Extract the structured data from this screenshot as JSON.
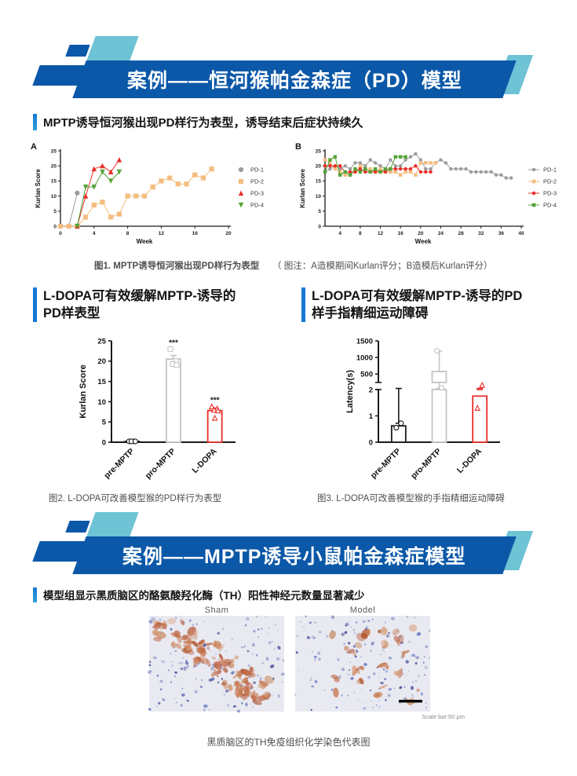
{
  "colors": {
    "banner_blue": "#0b58a8",
    "teal": "#6ec3d5",
    "accent_bar_blue": "#1778d4",
    "accent_bar_blue2": "#2da0d8",
    "caption_gray": "#4f4f4f",
    "series_gray": "#9b9b9b",
    "series_orange": "#f5bd7f",
    "series_red": "#e8302a",
    "series_green": "#55a338",
    "bar_gray": "#c4c4c4",
    "bar_black": "#1a1a1a",
    "histology_bg": "#e9eaf1"
  },
  "banner1": {
    "title": "案例——恒河猴帕金森症（PD）模型"
  },
  "section1": {
    "heading": "MPTP诱导恒河猴出现PD样行为表型，诱导结束后症状持续久"
  },
  "figure1": {
    "caption": "图1. MPTP诱导恒河猴出现PD样行为表型",
    "note": "（ 图注：A造模期间Kurlan评分；B造模后Kurlan评分）"
  },
  "section2": {
    "left_heading": "L-DOPA可有效缓解MPTP-诱导的PD样表型",
    "right_heading": "L-DOPA可有效缓解MPTP-诱导的PD样手指精细运动障碍"
  },
  "figure2": {
    "caption": "图2. L-DOPA可改善模型猴的PD样行为表型"
  },
  "figure3": {
    "caption": "图3. L-DOPA可改善模型猴的手指精细运动障碍"
  },
  "banner2": {
    "title": "案例——MPTP诱导小鼠帕金森症模型"
  },
  "section3": {
    "heading": "模型组显示黑质脑区的酪氨酸羟化酶（TH）阳性神经元数量显著减少"
  },
  "histology": {
    "panels": [
      {
        "label": "Sham",
        "seed": 7,
        "blue_dots": 150,
        "red_blobs": 62,
        "cluster": "diagonal",
        "scale_bar": false
      },
      {
        "label": "Model",
        "seed": 13,
        "blue_dots": 150,
        "red_blobs": 24,
        "cluster": "scattered",
        "scale_bar": true
      }
    ],
    "scale_bar_text": "Scale bar:50 μm",
    "caption": "黑质脑区的TH免疫组织化学染色代表图"
  },
  "chart_data": [
    {
      "id": "panelA",
      "type": "line",
      "panel_label": "A",
      "xlabel": "Week",
      "ylabel": "Kurlan Score",
      "xlim": [
        0,
        20
      ],
      "xticks": [
        0,
        4,
        8,
        12,
        16,
        20
      ],
      "ylim": [
        0,
        25
      ],
      "yticks": [
        0,
        5,
        10,
        15,
        20,
        25
      ],
      "legend": {
        "position": "right",
        "style": "marker"
      },
      "series": [
        {
          "name": "PD-1",
          "color": "#9b9b9b",
          "marker": "circle",
          "x": [
            0,
            1,
            2
          ],
          "y": [
            0,
            0,
            11
          ]
        },
        {
          "name": "PD-2",
          "color": "#f5bd7f",
          "marker": "square",
          "x": [
            0,
            1,
            2,
            3,
            4,
            5,
            6,
            7,
            8,
            9,
            10,
            11,
            12,
            13,
            14,
            15,
            16,
            17,
            18
          ],
          "y": [
            0,
            0,
            0,
            3,
            7,
            8,
            3,
            4,
            10,
            10,
            10,
            13,
            15,
            16,
            14,
            14,
            17,
            16,
            19
          ]
        },
        {
          "name": "PD-3",
          "color": "#e8302a",
          "marker": "triangle-up",
          "x": [
            2,
            3,
            4,
            5,
            6,
            7
          ],
          "y": [
            0,
            10,
            19,
            20,
            18,
            22
          ]
        },
        {
          "name": "PD-4",
          "color": "#55a338",
          "marker": "triangle-down",
          "x": [
            2,
            3,
            4,
            5,
            6,
            7
          ],
          "y": [
            0,
            13,
            13,
            18,
            15,
            18
          ]
        }
      ]
    },
    {
      "id": "panelB",
      "type": "line",
      "panel_label": "B",
      "xlabel": "Week",
      "ylabel": "Kurlan Score",
      "xlim": [
        1,
        40
      ],
      "xticks": [
        4,
        8,
        12,
        16,
        20,
        24,
        28,
        32,
        36,
        40
      ],
      "ylim": [
        0,
        25
      ],
      "yticks": [
        0,
        5,
        10,
        15,
        20,
        25
      ],
      "legend": {
        "position": "right",
        "style": "line-marker"
      },
      "series": [
        {
          "name": "PD-1",
          "color": "#9b9b9b",
          "marker": "circle",
          "x": [
            1,
            2,
            3,
            4,
            5,
            6,
            7,
            8,
            9,
            10,
            11,
            12,
            13,
            14,
            15,
            16,
            17,
            18,
            19,
            20,
            21,
            22,
            23,
            24,
            25,
            26,
            27,
            28,
            29,
            30,
            31,
            32,
            33,
            34,
            35,
            36,
            37,
            38
          ],
          "y": [
            18,
            19,
            20,
            19,
            20,
            19,
            21,
            21,
            20,
            22,
            21,
            20,
            19,
            22,
            20,
            20,
            22,
            23,
            24,
            22,
            19,
            19,
            21,
            22,
            21,
            19,
            19,
            19,
            19,
            18,
            18,
            18,
            18,
            18,
            17,
            17,
            16,
            16
          ]
        },
        {
          "name": "PD-2",
          "color": "#f5bd7f",
          "marker": "square",
          "x": [
            1,
            2,
            3,
            4,
            5,
            6,
            7,
            8,
            9,
            10,
            11,
            12,
            13,
            14,
            15,
            16,
            17,
            18,
            19,
            20,
            21,
            22,
            23
          ],
          "y": [
            22,
            21,
            19,
            18,
            17,
            17,
            18,
            20,
            19,
            19,
            18,
            19,
            18,
            18,
            18,
            17,
            18,
            18,
            17,
            21,
            21,
            21,
            21
          ]
        },
        {
          "name": "PD-3",
          "color": "#e8302a",
          "marker": "circle",
          "x": [
            1,
            2,
            3,
            4,
            5,
            6,
            7,
            8,
            9,
            10,
            11,
            12,
            13,
            14,
            15,
            16,
            17,
            18,
            19,
            20,
            21,
            22
          ],
          "y": [
            20,
            20,
            20,
            20,
            18,
            18,
            18,
            19,
            18,
            18,
            18,
            18,
            18,
            19,
            19,
            19,
            19,
            19,
            20,
            18,
            18,
            18
          ]
        },
        {
          "name": "PD-4",
          "color": "#55a338",
          "marker": "square",
          "x": [
            1,
            2,
            3,
            4,
            5,
            6,
            7,
            8,
            9,
            10,
            11,
            12,
            13,
            14,
            15,
            16,
            17
          ],
          "y": [
            18,
            22,
            23,
            17,
            18,
            17,
            19,
            18,
            19,
            18,
            19,
            18,
            19,
            19,
            23,
            23,
            23
          ]
        }
      ]
    },
    {
      "id": "fig2",
      "type": "bar",
      "ylabel": "Kurlan Score",
      "ylim": [
        0,
        25
      ],
      "yticks": [
        0,
        5,
        10,
        15,
        20,
        25
      ],
      "categories": [
        "pre-MPTP",
        "pro-MPTP",
        "L-DOPA"
      ],
      "bars": [
        {
          "label": "pre-MPTP",
          "value": 0.2,
          "color": "#1a1a1a",
          "error": 0.1,
          "marker": "circle",
          "points": [
            0.2,
            0.2,
            0.2,
            0.2
          ],
          "sig": ""
        },
        {
          "label": "pro-MPTP",
          "value": 20.5,
          "color": "#c4c4c4",
          "error": 0.9,
          "marker": "square",
          "points": [
            23,
            20,
            19.3,
            19
          ],
          "sig": "***"
        },
        {
          "label": "L-DOPA",
          "value": 7.8,
          "color": "#e8302a",
          "error": 0.6,
          "marker": "triangle-up",
          "points": [
            8.8,
            8.3,
            8,
            7.8,
            6
          ],
          "sig": "***"
        }
      ]
    },
    {
      "id": "fig3",
      "type": "bar-broken",
      "ylabel": "Latency(s)",
      "lower": {
        "lim": [
          0,
          2
        ],
        "ticks": [
          0,
          1,
          2
        ]
      },
      "upper": {
        "lim": [
          250,
          1500
        ],
        "ticks": [
          500,
          1000,
          1500
        ]
      },
      "categories": [
        "pre-MPTP",
        "pro-MPTP",
        "L-DOPA"
      ],
      "bars": [
        {
          "label": "pre-MPTP",
          "value": 0.62,
          "color": "#1a1a1a",
          "error": 0.1,
          "marker": "circle",
          "points": [
            0.55,
            0.72
          ],
          "sig": ""
        },
        {
          "label": "pro-MPTP",
          "value": 580,
          "color": "#c4c4c4",
          "error": 620,
          "marker": "circle",
          "points": [
            1200,
            60
          ],
          "sig": ""
        },
        {
          "label": "L-DOPA",
          "value": 1.75,
          "color": "#e8302a",
          "error": 0.45,
          "marker": "triangle-up",
          "points": [
            1.3,
            160
          ],
          "sig": ""
        }
      ]
    }
  ]
}
